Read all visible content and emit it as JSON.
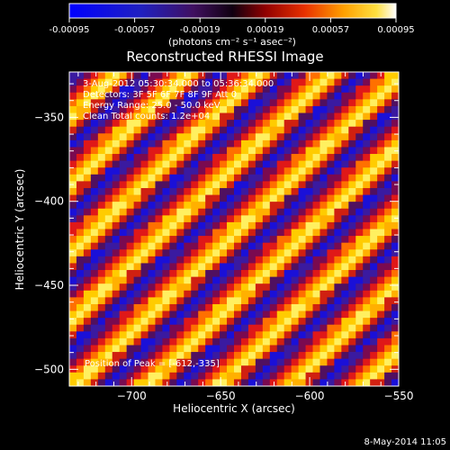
{
  "chart_data": {
    "type": "heatmap",
    "title": "Reconstructed RHESSI Image",
    "xlabel": "Heliocentric X (arcsec)",
    "ylabel": "Heliocentric Y (arcsec)",
    "xlim": [
      -735,
      -550
    ],
    "ylim": [
      -510,
      -323
    ],
    "x_ticks": [
      -700,
      -650,
      -600,
      -550
    ],
    "y_ticks": [
      -350,
      -400,
      -450,
      -500
    ],
    "colorbar": {
      "ticks": [
        "-0.00095",
        "-0.00057",
        "-0.00019",
        "0.00019",
        "0.00057",
        "0.00095"
      ],
      "min": -0.00095,
      "max": 0.00095,
      "units_label": "(photons cm⁻² s⁻¹ asec⁻²)"
    },
    "pattern": {
      "description": "diagonal fringe (grid modulation) pattern",
      "cells_x": 46,
      "cells_y": 46
    },
    "annotations": [
      "3-Aug-2012 05:30:34.000 to 05:36:34.000",
      "Detectors: 3F 5F 6F 7F 8F 9F  Att 0",
      "Energy Range: 25.0 - 50.0 keV",
      "Clean     Total counts: 1.2e+04"
    ],
    "peak_label": "Position of Peak = [-612,-335]",
    "footer": "8-May-2014 11:05"
  }
}
